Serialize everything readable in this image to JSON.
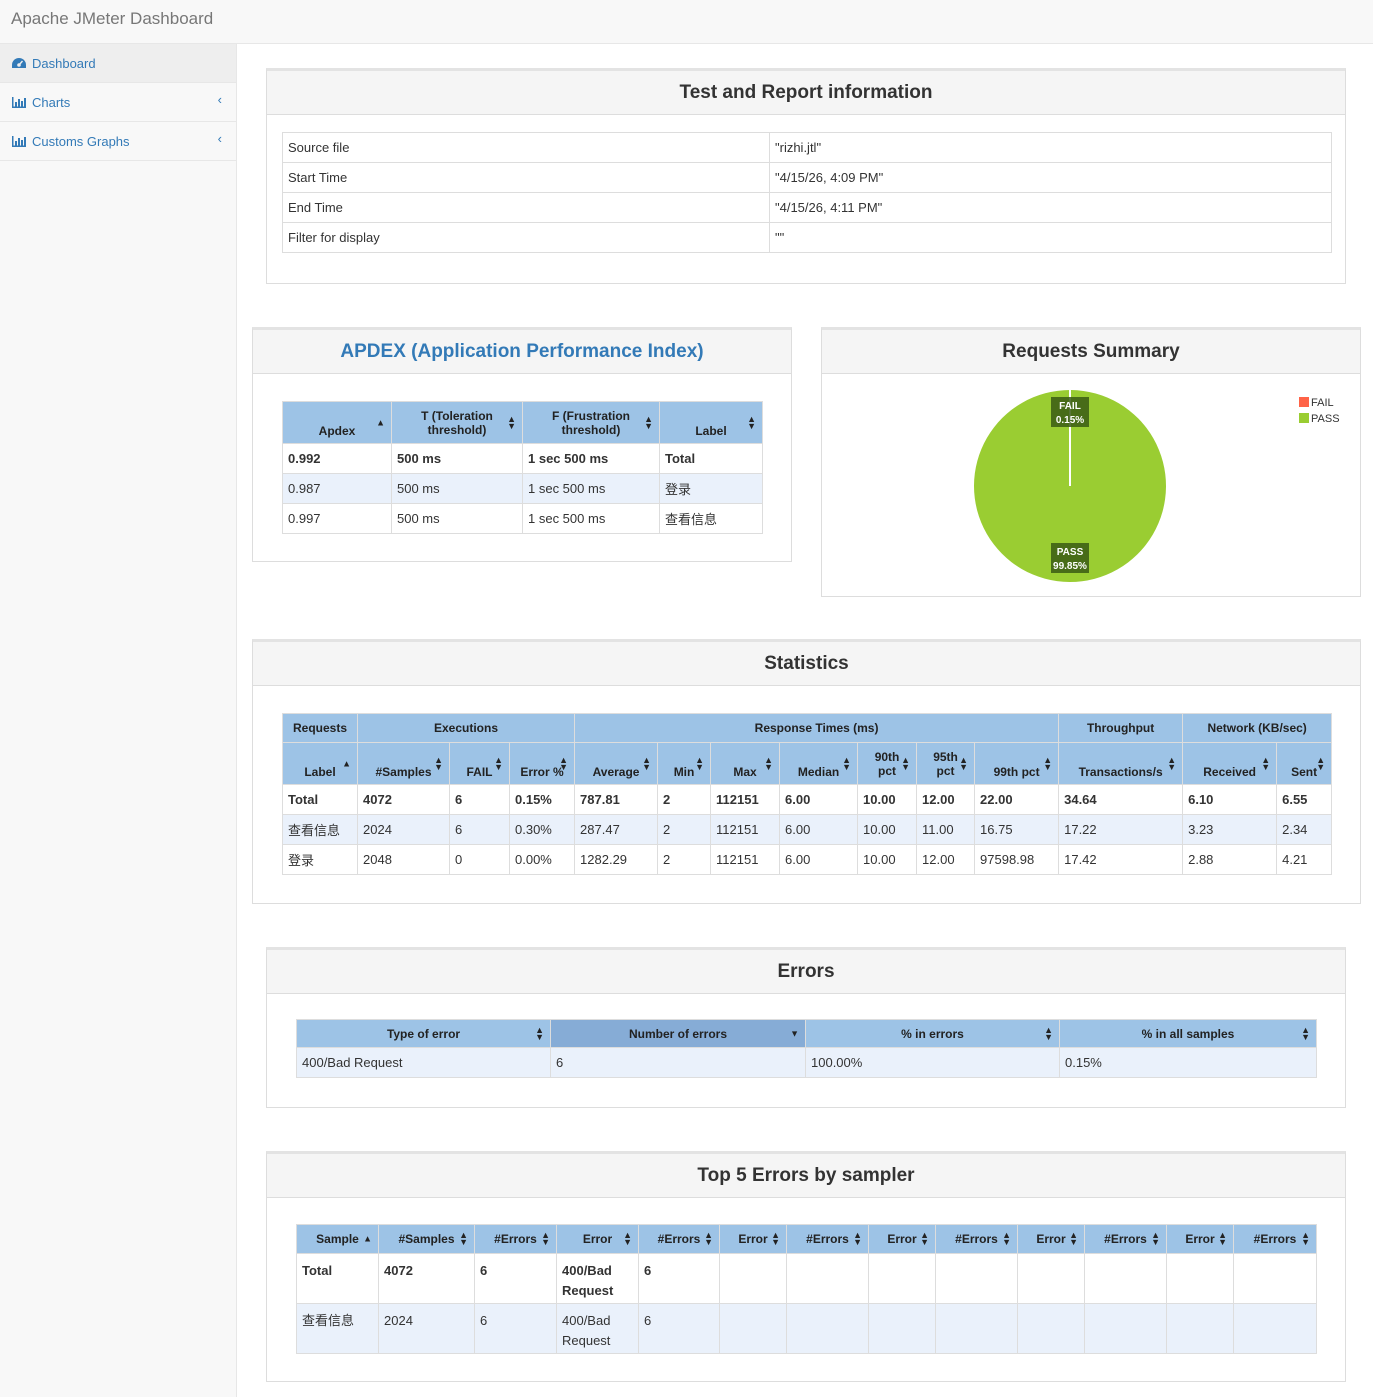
{
  "app": {
    "title": "Apache JMeter Dashboard"
  },
  "sidebar": {
    "items": [
      {
        "label": "Dashboard",
        "icon": "dashboard-icon"
      },
      {
        "label": "Charts",
        "icon": "bar-chart-icon"
      },
      {
        "label": "Customs Graphs",
        "icon": "bar-chart-icon"
      }
    ]
  },
  "info": {
    "title": "Test and Report information",
    "rows": [
      [
        "Source file",
        "\"rizhi.jtl\""
      ],
      [
        "Start Time",
        "\"4/15/26, 4:09 PM\""
      ],
      [
        "End Time",
        "\"4/15/26, 4:11 PM\""
      ],
      [
        "Filter for display",
        "\"\""
      ]
    ]
  },
  "apdex": {
    "title": "APDEX (Application Performance Index)",
    "headers": [
      "Apdex",
      "T (Toleration threshold)",
      "F (Frustration threshold)",
      "Label"
    ],
    "header_lines": [
      [
        "Apdex"
      ],
      [
        "T (Toleration",
        "threshold)"
      ],
      [
        "F (Frustration",
        "threshold)"
      ],
      [
        "Label"
      ]
    ],
    "rows": [
      [
        "0.992",
        "500 ms",
        "1 sec 500 ms",
        "Total"
      ],
      [
        "0.987",
        "500 ms",
        "1 sec 500 ms",
        "登录"
      ],
      [
        "0.997",
        "500 ms",
        "1 sec 500 ms",
        "查看信息"
      ]
    ]
  },
  "summary": {
    "title": "Requests Summary",
    "legend": [
      "FAIL",
      "PASS"
    ],
    "fail_label": "FAIL",
    "fail_pct": "0.15%",
    "pass_label": "PASS",
    "pass_pct": "99.85%"
  },
  "chart_data": {
    "type": "pie",
    "title": "Requests Summary",
    "slices": [
      {
        "name": "FAIL",
        "value": 0.15,
        "label": "0.15%"
      },
      {
        "name": "PASS",
        "value": 99.85,
        "label": "99.85%"
      }
    ],
    "colors": {
      "FAIL": "#ff6347",
      "PASS": "#9acd32"
    },
    "legend": "top-right"
  },
  "statistics": {
    "title": "Statistics",
    "group_headers": [
      "Requests",
      "Executions",
      "Response Times (ms)",
      "Throughput",
      "Network (KB/sec)"
    ],
    "headers": [
      [
        "Label"
      ],
      [
        "#Samples"
      ],
      [
        "FAIL"
      ],
      [
        "Error %"
      ],
      [
        "Average"
      ],
      [
        "Min"
      ],
      [
        "Max"
      ],
      [
        "Median"
      ],
      [
        "90th",
        "pct"
      ],
      [
        "95th",
        "pct"
      ],
      [
        "99th pct"
      ],
      [
        "Transactions/s"
      ],
      [
        "Received"
      ],
      [
        "Sent"
      ]
    ],
    "rows": [
      [
        "Total",
        "4072",
        "6",
        "0.15%",
        "787.81",
        "2",
        "112151",
        "6.00",
        "10.00",
        "12.00",
        "22.00",
        "34.64",
        "6.10",
        "6.55"
      ],
      [
        "查看信息",
        "2024",
        "6",
        "0.30%",
        "287.47",
        "2",
        "112151",
        "6.00",
        "10.00",
        "11.00",
        "16.75",
        "17.22",
        "3.23",
        "2.34"
      ],
      [
        "登录",
        "2048",
        "0",
        "0.00%",
        "1282.29",
        "2",
        "112151",
        "6.00",
        "10.00",
        "12.00",
        "97598.98",
        "17.42",
        "2.88",
        "4.21"
      ]
    ]
  },
  "errors": {
    "title": "Errors",
    "headers": [
      "Type of error",
      "Number of errors",
      "% in errors",
      "% in all samples"
    ],
    "rows": [
      [
        "400/Bad Request",
        "6",
        "100.00%",
        "0.15%"
      ]
    ]
  },
  "top5": {
    "title": "Top 5 Errors by sampler",
    "headers": [
      "Sample",
      "#Samples",
      "#Errors",
      "Error",
      "#Errors",
      "Error",
      "#Errors",
      "Error",
      "#Errors",
      "Error",
      "#Errors",
      "Error",
      "#Errors"
    ],
    "rows": [
      [
        "Total",
        "4072",
        "6",
        "400/Bad Request",
        "6",
        "",
        "",
        "",
        "",
        "",
        "",
        "",
        ""
      ],
      [
        "查看信息",
        "2024",
        "6",
        "400/Bad Request",
        "6",
        "",
        "",
        "",
        "",
        "",
        "",
        "",
        ""
      ]
    ]
  },
  "colors": {
    "link": "#337ab7",
    "table_header": "#9dc3e6",
    "row_stripe": "#eaf1fb",
    "fail": "#ff6347",
    "pass": "#9acd32"
  }
}
